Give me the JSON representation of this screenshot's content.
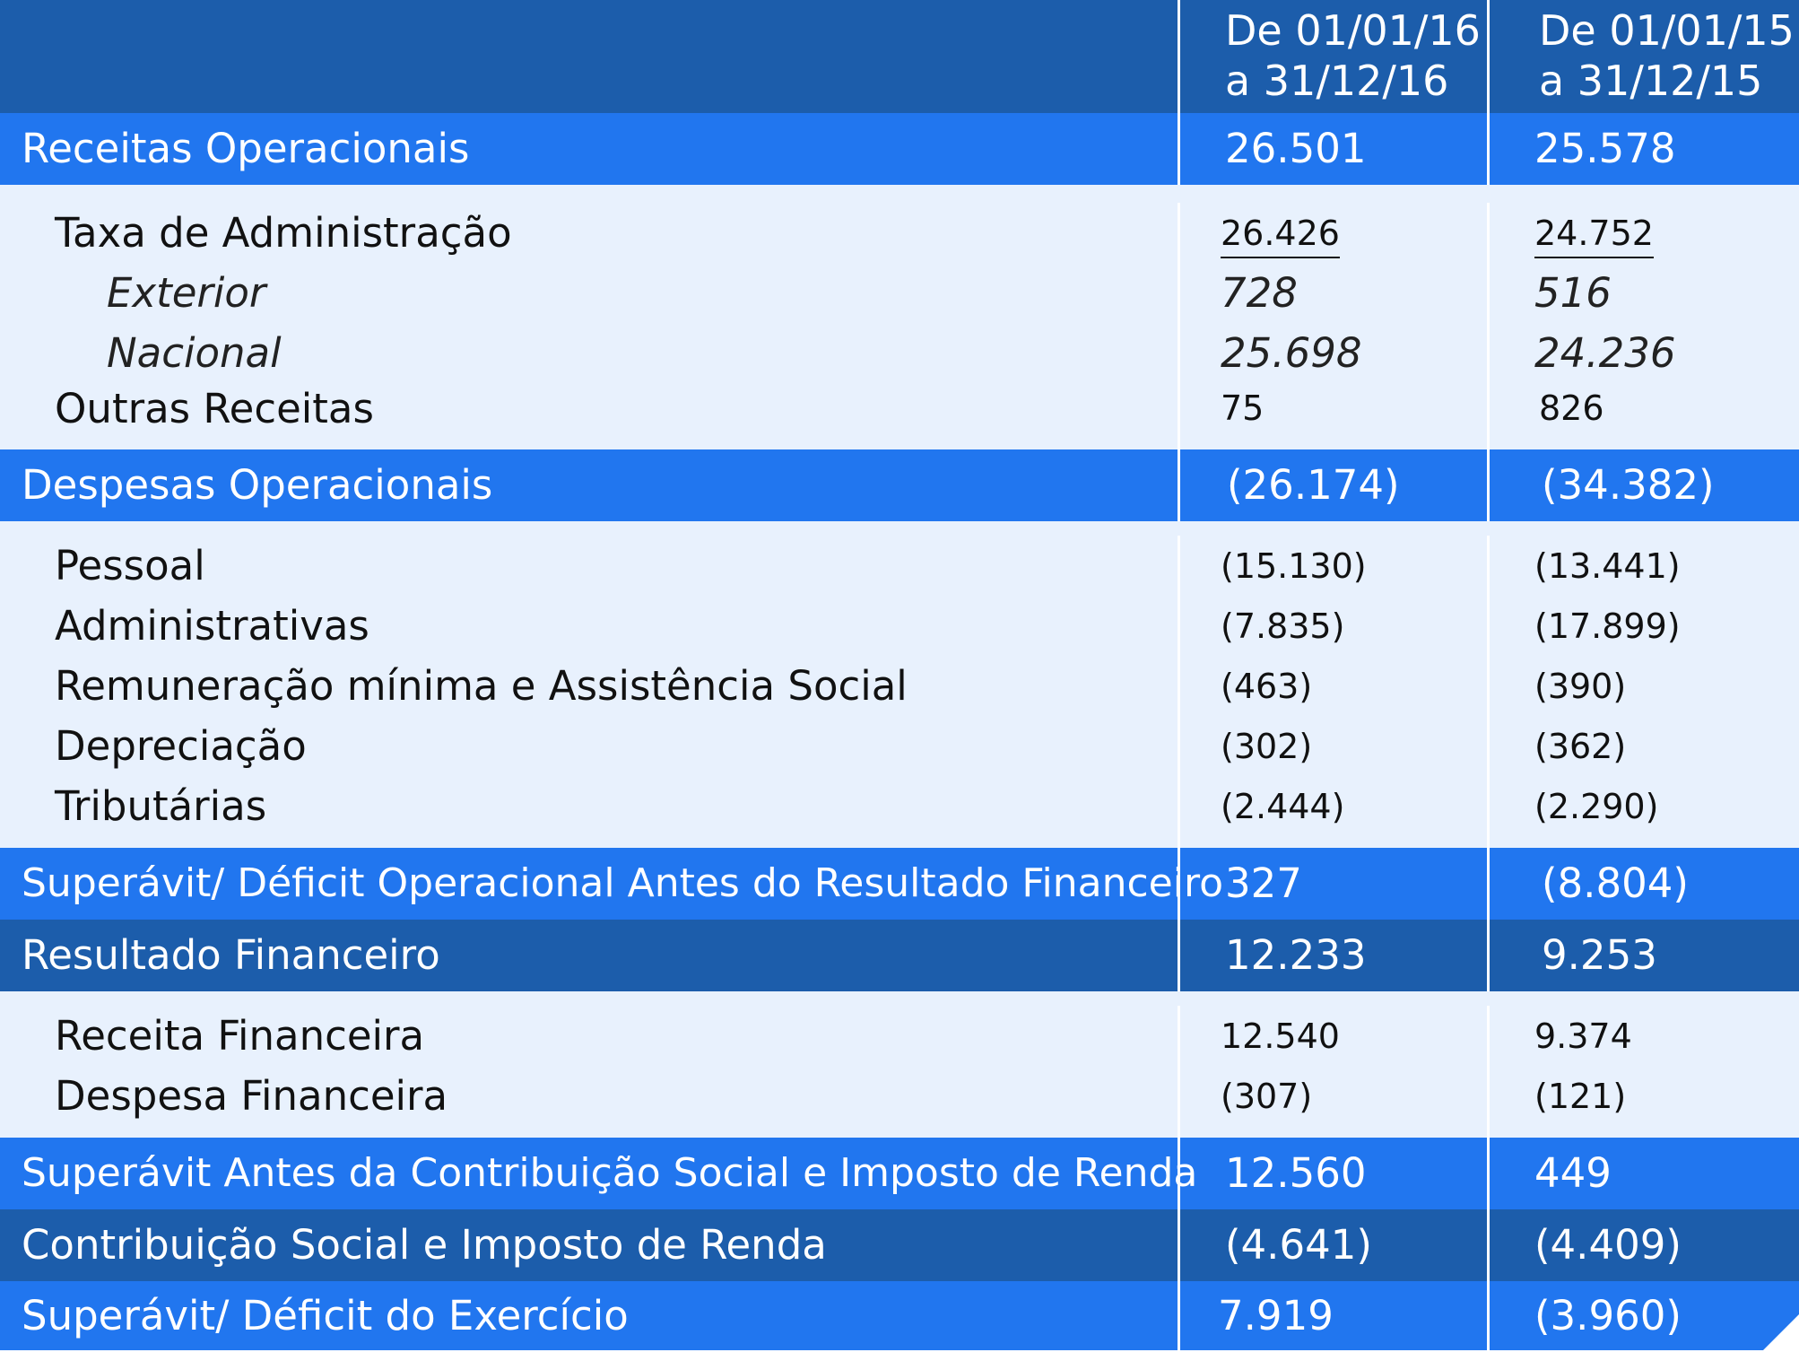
{
  "header": {
    "col1": [
      "De 01/01/16",
      "a 31/12/16"
    ],
    "col2": [
      "De 01/01/15",
      "a 31/12/15"
    ]
  },
  "rows": {
    "receitas_operacionais": {
      "label": "Receitas Operacionais",
      "v16": "26.501",
      "v15": "25.578"
    },
    "taxa_administracao": {
      "label": "Taxa de Administração",
      "v16": "26.426",
      "v15": "24.752"
    },
    "exterior": {
      "label": "Exterior",
      "v16": "728",
      "v15": "516"
    },
    "nacional": {
      "label": "Nacional",
      "v16": "25.698",
      "v15": "24.236"
    },
    "outras_receitas": {
      "label": "Outras Receitas",
      "v16": "75",
      "v15": "826"
    },
    "despesas_operacionais": {
      "label": "Despesas Operacionais",
      "v16": "(26.174)",
      "v15": "(34.382)"
    },
    "pessoal": {
      "label": "Pessoal",
      "v16": "(15.130)",
      "v15": "(13.441)"
    },
    "administrativas": {
      "label": "Administrativas",
      "v16": "(7.835)",
      "v15": "(17.899)"
    },
    "remuneracao": {
      "label": "Remuneração mínima e Assistência Social",
      "v16": "(463)",
      "v15": "(390)"
    },
    "depreciacao": {
      "label": "Depreciação",
      "v16": "(302)",
      "v15": "(362)"
    },
    "tributarias": {
      "label": "Tributárias",
      "v16": "(2.444)",
      "v15": "(2.290)"
    },
    "superavit_operacional": {
      "label": "Superávit/ Déficit Operacional Antes do Resultado Financeiro",
      "v16": "327",
      "v15": "(8.804)"
    },
    "resultado_financeiro": {
      "label": "Resultado Financeiro",
      "v16": "12.233",
      "v15": "9.253"
    },
    "receita_financeira": {
      "label": "Receita Financeira",
      "v16": "12.540",
      "v15": "9.374"
    },
    "despesa_financeira": {
      "label": "Despesa Financeira",
      "v16": "(307)",
      "v15": "(121)"
    },
    "superavit_antes_csir": {
      "label": "Superávit Antes da Contribuição Social e Imposto de Renda",
      "v16": "12.560",
      "v15": "449"
    },
    "contribuicao_social": {
      "label": "Contribuição Social e Imposto de Renda",
      "v16": "(4.641)",
      "v15": "(4.409)"
    },
    "superavit_exercicio": {
      "label": "Superávit/ Déficit do Exercício",
      "v16": "7.919",
      "v15": "(3.960)"
    }
  },
  "colors": {
    "header_bg": "#1c5dab",
    "band_bright": "#2176ef",
    "band_dark": "#1c5dab",
    "detail_bg": "#e8f1fd"
  }
}
